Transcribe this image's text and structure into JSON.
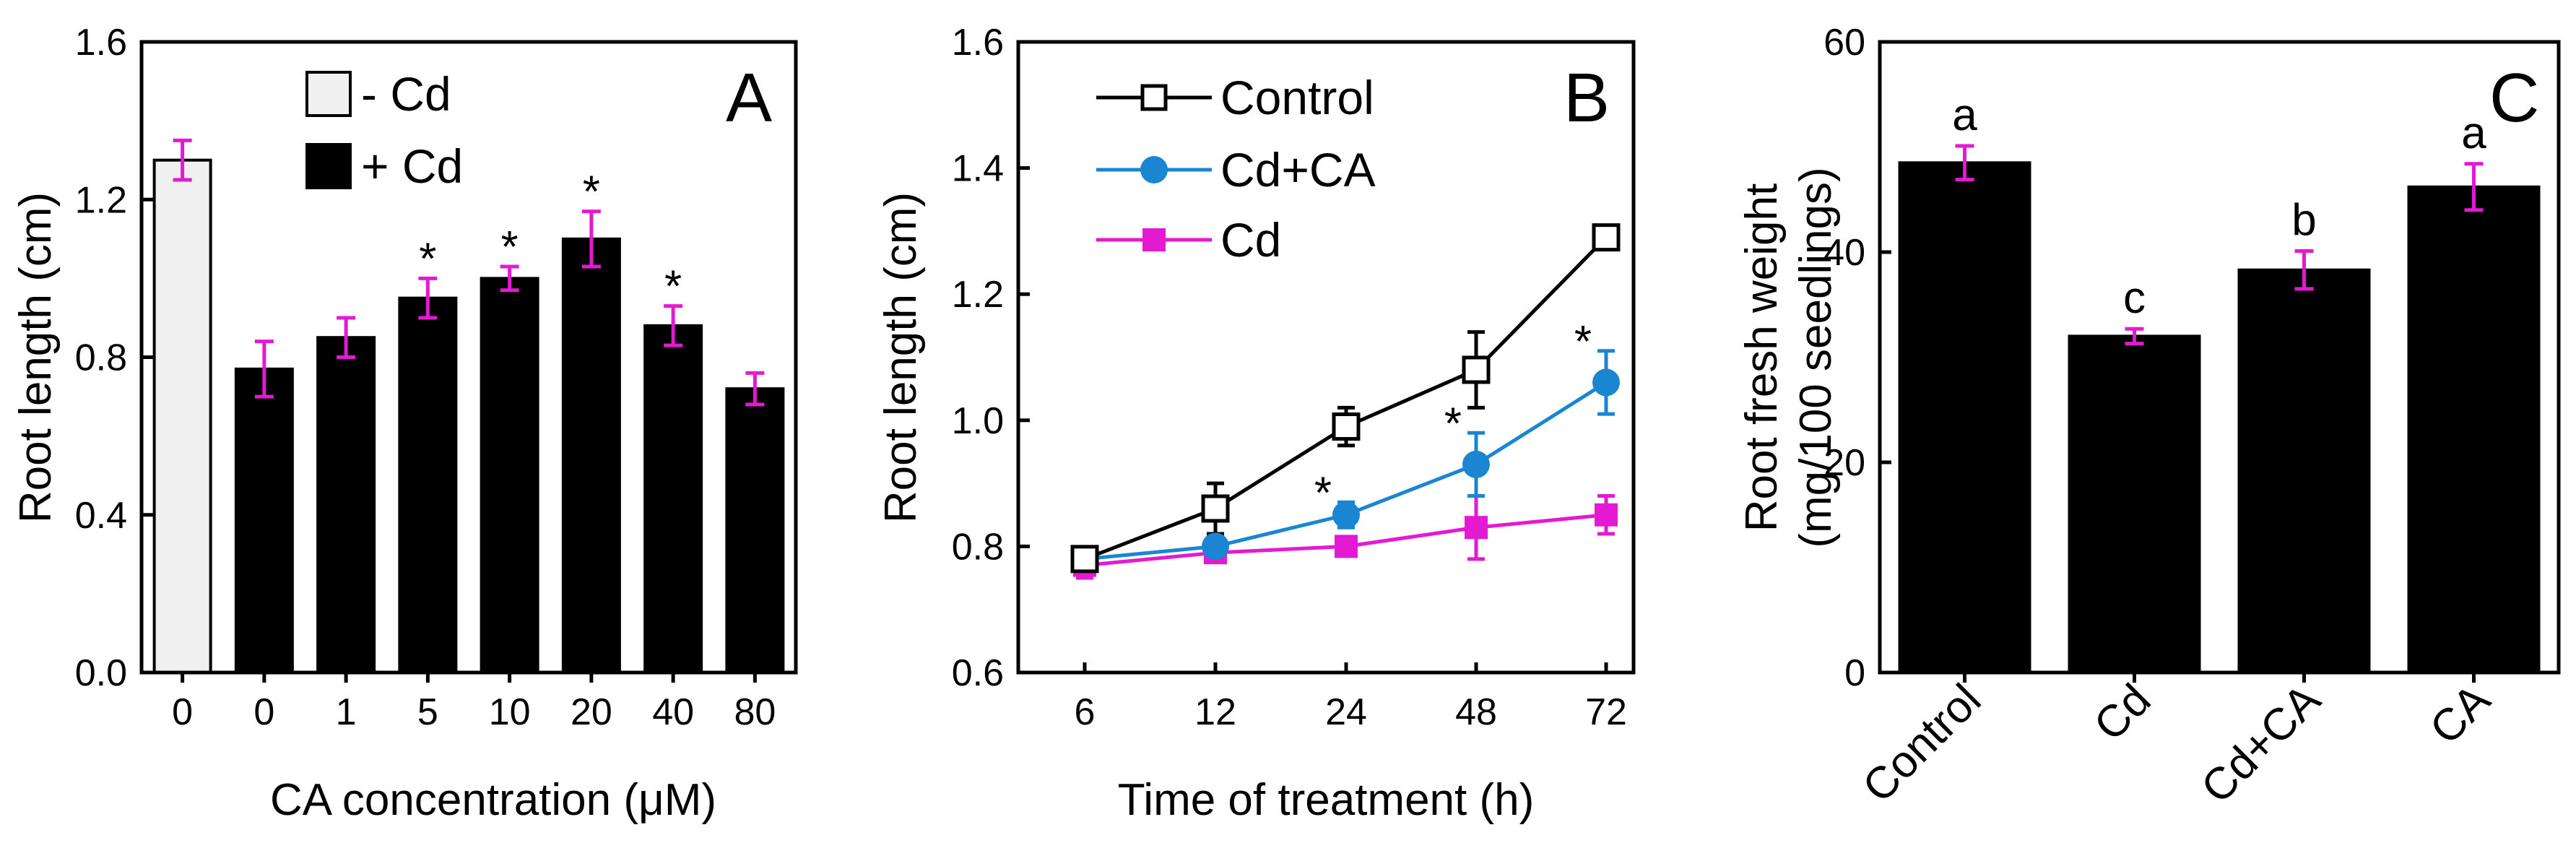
{
  "chart_data": [
    {
      "panel_id": "A",
      "type": "bar",
      "panel_letter": "A",
      "xlabel": "CA concentration (μM)",
      "ylabel": "Root length (cm)",
      "ylim": [
        0,
        1.6
      ],
      "yticks": [
        "0.0",
        "0.4",
        "0.8",
        "1.2",
        "1.6"
      ],
      "categories": [
        "0",
        "0",
        "1",
        "5",
        "10",
        "20",
        "40",
        "80"
      ],
      "values": [
        1.3,
        0.77,
        0.85,
        0.95,
        1.0,
        1.1,
        0.88,
        0.72
      ],
      "errors": [
        0.05,
        0.07,
        0.05,
        0.05,
        0.03,
        0.07,
        0.05,
        0.04
      ],
      "groups": [
        "minus_cd",
        "plus_cd",
        "plus_cd",
        "plus_cd",
        "plus_cd",
        "plus_cd",
        "plus_cd",
        "plus_cd"
      ],
      "significance": [
        "",
        "",
        "",
        "*",
        "*",
        "*",
        "*",
        ""
      ],
      "legend": [
        {
          "label": "- Cd",
          "color": "#f0f0f0"
        },
        {
          "label": "+ Cd",
          "color": "#000000"
        }
      ],
      "error_color": "#e41ad2",
      "legend_position": "top-left"
    },
    {
      "panel_id": "B",
      "type": "line",
      "panel_letter": "B",
      "xlabel": "Time of treatment (h)",
      "ylabel": "Root length (cm)",
      "ylim": [
        0.6,
        1.6
      ],
      "yticks": [
        "0.6",
        "0.8",
        "1.0",
        "1.2",
        "1.4",
        "1.6"
      ],
      "categories": [
        "6",
        "12",
        "24",
        "48",
        "72"
      ],
      "series": [
        {
          "name": "Control",
          "color": "#000000",
          "marker": "open-square",
          "values": [
            0.78,
            0.86,
            0.99,
            1.08,
            1.29
          ],
          "errors": [
            0.01,
            0.04,
            0.03,
            0.06,
            0.01
          ],
          "significance": [
            "",
            "",
            "",
            "",
            ""
          ]
        },
        {
          "name": "Cd+CA",
          "color": "#1a86d1",
          "marker": "circle",
          "values": [
            0.78,
            0.8,
            0.85,
            0.93,
            1.06
          ],
          "errors": [
            0.01,
            0.01,
            0.02,
            0.05,
            0.05
          ],
          "significance": [
            "",
            "",
            "*",
            "*",
            "*"
          ]
        },
        {
          "name": "Cd",
          "color": "#e41ad2",
          "marker": "square",
          "values": [
            0.77,
            0.79,
            0.8,
            0.83,
            0.85
          ],
          "errors": [
            0.02,
            0.01,
            0.01,
            0.05,
            0.03
          ],
          "significance": [
            "",
            "",
            "",
            "",
            ""
          ]
        }
      ],
      "legend_position": "top-left"
    },
    {
      "panel_id": "C",
      "type": "bar",
      "panel_letter": "C",
      "xlabel": "",
      "ylabel_lines": [
        "Root fresh weight",
        "(mg/100 seedlings)"
      ],
      "ylim": [
        0,
        60
      ],
      "yticks": [
        "0",
        "20",
        "40",
        "60"
      ],
      "categories": [
        "Control",
        "Cd",
        "Cd+CA",
        "CA"
      ],
      "values": [
        48.5,
        32.0,
        38.3,
        46.2
      ],
      "errors": [
        1.6,
        0.7,
        1.8,
        2.2
      ],
      "letters": [
        "a",
        "c",
        "b",
        "a"
      ],
      "bar_color": "#000000",
      "error_color": "#e41ad2"
    }
  ]
}
